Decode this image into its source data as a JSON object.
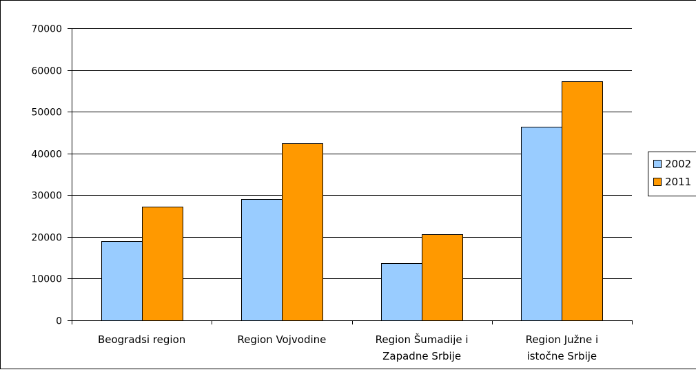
{
  "chart_data": {
    "type": "bar",
    "title": "",
    "xlabel": "",
    "ylabel": "",
    "categories": [
      "Beogradsi region",
      "Region Vojvodine",
      "Region Šumadije i Zapadne Srbije",
      "Region Južne i istočne Srbije"
    ],
    "category_lines": [
      [
        "Beogradsi region"
      ],
      [
        "Region Vojvodine"
      ],
      [
        "Region Šumadije i",
        "Zapadne Srbije"
      ],
      [
        "Region Južne i",
        "istočne Srbije"
      ]
    ],
    "series": [
      {
        "name": "2002",
        "color": "#99ccff",
        "values": [
          19000,
          29000,
          13700,
          46400
        ]
      },
      {
        "name": "2011",
        "color": "#ff9900",
        "values": [
          27300,
          42500,
          20700,
          57300
        ]
      }
    ],
    "ylim": [
      0,
      70000
    ],
    "yticks": [
      0,
      10000,
      20000,
      30000,
      40000,
      50000,
      60000,
      70000
    ],
    "grid": true,
    "legend_position": "right"
  }
}
